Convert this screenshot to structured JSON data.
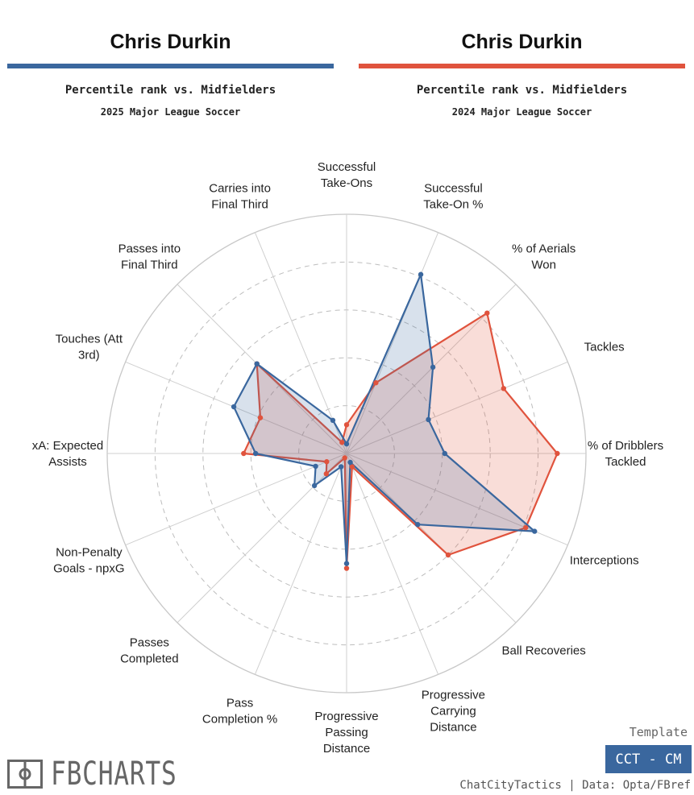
{
  "left_panel": {
    "player": "Chris Durkin",
    "subtitle": "Percentile rank vs. Midfielders",
    "season": "2025 Major League Soccer",
    "color": "#3a679e"
  },
  "right_panel": {
    "player": "Chris Durkin",
    "subtitle": "Percentile rank vs. Midfielders",
    "season": "2024 Major League Soccer",
    "color": "#e0533d"
  },
  "chart_data": {
    "type": "radar",
    "range": [
      0,
      100
    ],
    "rings": [
      20,
      40,
      60,
      80,
      100
    ],
    "grid": true,
    "metrics": [
      [
        "Successful",
        "Take-Ons"
      ],
      [
        "Successful",
        "Take-On %"
      ],
      [
        "% of Aerials",
        "Won"
      ],
      [
        "Tackles"
      ],
      [
        "% of Dribblers",
        "Tackled"
      ],
      [
        "Interceptions"
      ],
      [
        "Ball Recoveries"
      ],
      [
        "Progressive",
        "Carrying",
        "Distance"
      ],
      [
        "Progressive",
        "Passing",
        "Distance"
      ],
      [
        "Pass",
        "Completion %"
      ],
      [
        "Passes",
        "Completed"
      ],
      [
        "Non-Penalty",
        "Goals - npxG"
      ],
      [
        "xA: Expected",
        "Assists"
      ],
      [
        "Touches (Att",
        "3rd)"
      ],
      [
        "Passes into",
        "Final Third"
      ],
      [
        "Carries into",
        "Final Third"
      ]
    ],
    "series": [
      {
        "name": "2025 Major League Soccer",
        "color": "#3a679e",
        "values": [
          4,
          81,
          51,
          37,
          41,
          85,
          42,
          4,
          46,
          6,
          19,
          14,
          38,
          51,
          53,
          15
        ]
      },
      {
        "name": "2024 Major League Soccer",
        "color": "#e0533d",
        "values": [
          12,
          32,
          83,
          71,
          88,
          81,
          60,
          6,
          48,
          2,
          12,
          9,
          43,
          39,
          53,
          5
        ]
      }
    ]
  },
  "footer": {
    "logo_text": "FBCHARTS",
    "template_label": "Template",
    "template_name": "CCT - CM",
    "credit": "ChatCityTactics | Data: Opta/FBref"
  }
}
